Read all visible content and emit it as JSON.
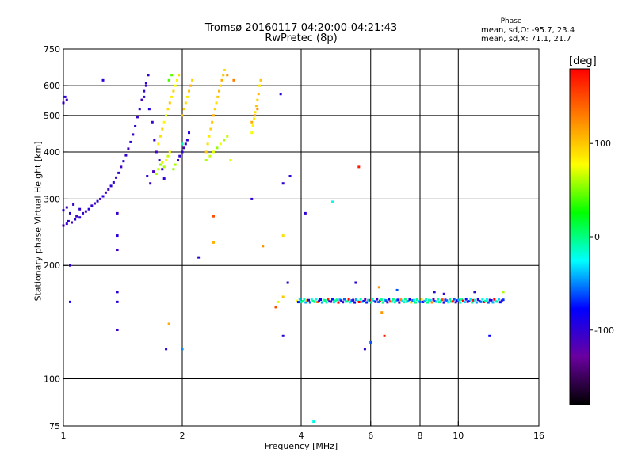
{
  "title": {
    "line1": "Tromsø 20160117 04:20:00-04:21:43",
    "line2": "RwPretec (8p)"
  },
  "phase_stats": {
    "heading": "Phase",
    "o_mode": "mean, sd,O: -95.7, 23.4",
    "x_mode": "mean, sd,X:  71.1, 21.7"
  },
  "colorbar": {
    "unit": "[deg]",
    "range": [
      -180,
      180
    ],
    "ticks": [
      {
        "value": 100,
        "label": "100"
      },
      {
        "value": 0,
        "label": "0"
      },
      {
        "value": -100,
        "label": "-100"
      }
    ],
    "colors": [
      "#000000",
      "#6a00a0",
      "#0000ff",
      "#00ffff",
      "#00ff00",
      "#ffff00",
      "#ff8000",
      "#ff0000"
    ]
  },
  "chart_data": {
    "type": "scatter",
    "xlabel": "Frequency [MHz]",
    "ylabel": "Stationary phase Virtual Height [km]",
    "x_scale": "log",
    "y_scale": "log",
    "xlim": [
      1,
      16
    ],
    "ylim": [
      75,
      750
    ],
    "x_ticks": [
      {
        "value": 1,
        "label": "1"
      },
      {
        "value": 2,
        "label": "2"
      },
      {
        "value": 4,
        "label": "4"
      },
      {
        "value": 6,
        "label": "6"
      },
      {
        "value": 8,
        "label": "8"
      },
      {
        "value": 10,
        "label": "10"
      },
      {
        "value": 16,
        "label": "16"
      }
    ],
    "y_ticks": [
      {
        "value": 75,
        "label": "75"
      },
      {
        "value": 100,
        "label": "100"
      },
      {
        "value": 200,
        "label": "200"
      },
      {
        "value": 300,
        "label": "300"
      },
      {
        "value": 400,
        "label": "400"
      },
      {
        "value": 500,
        "label": "500"
      },
      {
        "value": 600,
        "label": "600"
      },
      {
        "value": 750,
        "label": "750"
      }
    ],
    "grid_x": [
      2,
      4,
      6,
      8,
      10
    ],
    "grid_y": [
      100,
      200,
      300,
      400,
      500,
      600
    ],
    "points": [
      {
        "x": 1.0,
        "y": 255,
        "phase": -110
      },
      {
        "x": 1.02,
        "y": 258,
        "phase": -105
      },
      {
        "x": 1.03,
        "y": 262,
        "phase": -100
      },
      {
        "x": 1.05,
        "y": 260,
        "phase": -108
      },
      {
        "x": 1.07,
        "y": 265,
        "phase": -100
      },
      {
        "x": 1.08,
        "y": 270,
        "phase": -112
      },
      {
        "x": 1.1,
        "y": 268,
        "phase": -98
      },
      {
        "x": 1.12,
        "y": 275,
        "phase": -104
      },
      {
        "x": 1.14,
        "y": 278,
        "phase": -110
      },
      {
        "x": 1.16,
        "y": 282,
        "phase": -95
      },
      {
        "x": 1.18,
        "y": 288,
        "phase": -102
      },
      {
        "x": 1.2,
        "y": 292,
        "phase": -108
      },
      {
        "x": 1.22,
        "y": 296,
        "phase": -100
      },
      {
        "x": 1.24,
        "y": 300,
        "phase": -106
      },
      {
        "x": 1.26,
        "y": 305,
        "phase": -96
      },
      {
        "x": 1.28,
        "y": 312,
        "phase": -104
      },
      {
        "x": 1.3,
        "y": 318,
        "phase": -110
      },
      {
        "x": 1.32,
        "y": 325,
        "phase": -100
      },
      {
        "x": 1.34,
        "y": 332,
        "phase": -98
      },
      {
        "x": 1.36,
        "y": 342,
        "phase": -105
      },
      {
        "x": 1.38,
        "y": 352,
        "phase": -100
      },
      {
        "x": 1.4,
        "y": 365,
        "phase": -108
      },
      {
        "x": 1.42,
        "y": 378,
        "phase": -96
      },
      {
        "x": 1.44,
        "y": 392,
        "phase": -102
      },
      {
        "x": 1.46,
        "y": 408,
        "phase": -110
      },
      {
        "x": 1.48,
        "y": 425,
        "phase": -100
      },
      {
        "x": 1.5,
        "y": 445,
        "phase": -104
      },
      {
        "x": 1.52,
        "y": 468,
        "phase": -98
      },
      {
        "x": 1.54,
        "y": 495,
        "phase": -106
      },
      {
        "x": 1.56,
        "y": 520,
        "phase": -100
      },
      {
        "x": 1.58,
        "y": 550,
        "phase": -110
      },
      {
        "x": 1.6,
        "y": 580,
        "phase": -102
      },
      {
        "x": 1.62,
        "y": 610,
        "phase": -96
      },
      {
        "x": 1.64,
        "y": 640,
        "phase": -104
      },
      {
        "x": 1.0,
        "y": 280,
        "phase": -100
      },
      {
        "x": 1.02,
        "y": 285,
        "phase": -110
      },
      {
        "x": 1.04,
        "y": 275,
        "phase": -95
      },
      {
        "x": 1.06,
        "y": 290,
        "phase": -105
      },
      {
        "x": 1.1,
        "y": 282,
        "phase": -100
      },
      {
        "x": 1.0,
        "y": 540,
        "phase": -105
      },
      {
        "x": 1.01,
        "y": 560,
        "phase": -100
      },
      {
        "x": 1.02,
        "y": 550,
        "phase": -110
      },
      {
        "x": 1.26,
        "y": 620,
        "phase": -100
      },
      {
        "x": 1.04,
        "y": 200,
        "phase": -100
      },
      {
        "x": 1.04,
        "y": 160,
        "phase": -80
      },
      {
        "x": 1.37,
        "y": 275,
        "phase": -105
      },
      {
        "x": 1.37,
        "y": 240,
        "phase": -100
      },
      {
        "x": 1.37,
        "y": 220,
        "phase": -110
      },
      {
        "x": 1.37,
        "y": 170,
        "phase": -100
      },
      {
        "x": 1.37,
        "y": 160,
        "phase": -95
      },
      {
        "x": 1.37,
        "y": 135,
        "phase": -105
      },
      {
        "x": 1.6,
        "y": 560,
        "phase": -100
      },
      {
        "x": 1.62,
        "y": 600,
        "phase": -108
      },
      {
        "x": 1.65,
        "y": 520,
        "phase": -96
      },
      {
        "x": 1.68,
        "y": 480,
        "phase": -104
      },
      {
        "x": 1.7,
        "y": 430,
        "phase": -100
      },
      {
        "x": 1.72,
        "y": 400,
        "phase": -110
      },
      {
        "x": 1.75,
        "y": 380,
        "phase": -98
      },
      {
        "x": 1.78,
        "y": 360,
        "phase": -102
      },
      {
        "x": 1.8,
        "y": 340,
        "phase": -100
      },
      {
        "x": 1.66,
        "y": 330,
        "phase": -106
      },
      {
        "x": 1.63,
        "y": 345,
        "phase": -100
      },
      {
        "x": 1.69,
        "y": 355,
        "phase": -110
      },
      {
        "x": 1.72,
        "y": 350,
        "phase": 60
      },
      {
        "x": 1.74,
        "y": 360,
        "phase": 65
      },
      {
        "x": 1.76,
        "y": 370,
        "phase": 55
      },
      {
        "x": 1.78,
        "y": 375,
        "phase": 70
      },
      {
        "x": 1.8,
        "y": 365,
        "phase": 60
      },
      {
        "x": 1.82,
        "y": 380,
        "phase": 75
      },
      {
        "x": 1.84,
        "y": 390,
        "phase": 65
      },
      {
        "x": 1.86,
        "y": 400,
        "phase": 80
      },
      {
        "x": 1.74,
        "y": 420,
        "phase": 85
      },
      {
        "x": 1.76,
        "y": 440,
        "phase": 90
      },
      {
        "x": 1.78,
        "y": 460,
        "phase": 95
      },
      {
        "x": 1.8,
        "y": 480,
        "phase": 80
      },
      {
        "x": 1.82,
        "y": 500,
        "phase": 70
      },
      {
        "x": 1.84,
        "y": 520,
        "phase": 90
      },
      {
        "x": 1.86,
        "y": 540,
        "phase": 100
      },
      {
        "x": 1.88,
        "y": 560,
        "phase": 85
      },
      {
        "x": 1.9,
        "y": 580,
        "phase": 95
      },
      {
        "x": 1.92,
        "y": 600,
        "phase": 75
      },
      {
        "x": 1.94,
        "y": 620,
        "phase": 80
      },
      {
        "x": 1.96,
        "y": 640,
        "phase": 90
      },
      {
        "x": 1.85,
        "y": 620,
        "phase": 40
      },
      {
        "x": 1.88,
        "y": 640,
        "phase": 45
      },
      {
        "x": 1.9,
        "y": 360,
        "phase": 55
      },
      {
        "x": 1.92,
        "y": 370,
        "phase": 60
      },
      {
        "x": 1.95,
        "y": 380,
        "phase": -100
      },
      {
        "x": 1.97,
        "y": 390,
        "phase": -105
      },
      {
        "x": 2.0,
        "y": 400,
        "phase": -100
      },
      {
        "x": 2.02,
        "y": 410,
        "phase": -110
      },
      {
        "x": 2.04,
        "y": 420,
        "phase": -98
      },
      {
        "x": 2.06,
        "y": 430,
        "phase": -100
      },
      {
        "x": 2.08,
        "y": 450,
        "phase": -95
      },
      {
        "x": 2.0,
        "y": 500,
        "phase": 100
      },
      {
        "x": 2.02,
        "y": 520,
        "phase": 95
      },
      {
        "x": 2.04,
        "y": 540,
        "phase": 90
      },
      {
        "x": 2.06,
        "y": 560,
        "phase": 85
      },
      {
        "x": 2.08,
        "y": 580,
        "phase": 100
      },
      {
        "x": 2.1,
        "y": 600,
        "phase": 110
      },
      {
        "x": 2.12,
        "y": 620,
        "phase": 95
      },
      {
        "x": 2.3,
        "y": 400,
        "phase": 100
      },
      {
        "x": 2.32,
        "y": 420,
        "phase": 90
      },
      {
        "x": 2.34,
        "y": 440,
        "phase": 85
      },
      {
        "x": 2.36,
        "y": 460,
        "phase": 95
      },
      {
        "x": 2.38,
        "y": 480,
        "phase": 100
      },
      {
        "x": 2.4,
        "y": 500,
        "phase": 110
      },
      {
        "x": 2.42,
        "y": 520,
        "phase": 95
      },
      {
        "x": 2.44,
        "y": 540,
        "phase": 90
      },
      {
        "x": 2.46,
        "y": 560,
        "phase": 100
      },
      {
        "x": 2.48,
        "y": 580,
        "phase": 105
      },
      {
        "x": 2.5,
        "y": 600,
        "phase": 95
      },
      {
        "x": 2.52,
        "y": 620,
        "phase": 110
      },
      {
        "x": 2.54,
        "y": 640,
        "phase": 100
      },
      {
        "x": 2.56,
        "y": 660,
        "phase": 90
      },
      {
        "x": 2.3,
        "y": 380,
        "phase": 60
      },
      {
        "x": 2.35,
        "y": 390,
        "phase": 65
      },
      {
        "x": 2.4,
        "y": 400,
        "phase": 70
      },
      {
        "x": 2.45,
        "y": 410,
        "phase": 55
      },
      {
        "x": 2.5,
        "y": 420,
        "phase": 75
      },
      {
        "x": 2.55,
        "y": 430,
        "phase": 60
      },
      {
        "x": 2.6,
        "y": 440,
        "phase": 65
      },
      {
        "x": 2.65,
        "y": 380,
        "phase": 70
      },
      {
        "x": 2.6,
        "y": 640,
        "phase": 120
      },
      {
        "x": 2.7,
        "y": 620,
        "phase": 130
      },
      {
        "x": 3.0,
        "y": 450,
        "phase": 75
      },
      {
        "x": 3.02,
        "y": 470,
        "phase": 80
      },
      {
        "x": 3.04,
        "y": 490,
        "phase": 85
      },
      {
        "x": 3.06,
        "y": 510,
        "phase": 90
      },
      {
        "x": 3.08,
        "y": 530,
        "phase": 100
      },
      {
        "x": 3.1,
        "y": 550,
        "phase": 95
      },
      {
        "x": 3.12,
        "y": 570,
        "phase": 105
      },
      {
        "x": 3.14,
        "y": 600,
        "phase": 90
      },
      {
        "x": 3.16,
        "y": 620,
        "phase": 100
      },
      {
        "x": 3.0,
        "y": 480,
        "phase": 110
      },
      {
        "x": 3.05,
        "y": 500,
        "phase": 115
      },
      {
        "x": 3.1,
        "y": 520,
        "phase": 120
      },
      {
        "x": 2.0,
        "y": 420,
        "phase": -10
      },
      {
        "x": 2.2,
        "y": 210,
        "phase": -100
      },
      {
        "x": 2.4,
        "y": 270,
        "phase": 150
      },
      {
        "x": 2.4,
        "y": 230,
        "phase": 110
      },
      {
        "x": 3.0,
        "y": 300,
        "phase": -100
      },
      {
        "x": 3.2,
        "y": 225,
        "phase": 120
      },
      {
        "x": 3.6,
        "y": 240,
        "phase": 90
      },
      {
        "x": 3.6,
        "y": 330,
        "phase": -100
      },
      {
        "x": 3.75,
        "y": 345,
        "phase": -100
      },
      {
        "x": 3.55,
        "y": 570,
        "phase": -100
      },
      {
        "x": 1.82,
        "y": 120,
        "phase": -100
      },
      {
        "x": 1.85,
        "y": 140,
        "phase": 110
      },
      {
        "x": 2.0,
        "y": 120,
        "phase": -50
      },
      {
        "x": 3.45,
        "y": 155,
        "phase": 150
      },
      {
        "x": 3.5,
        "y": 160,
        "phase": 70
      },
      {
        "x": 3.6,
        "y": 165,
        "phase": 100
      },
      {
        "x": 3.7,
        "y": 180,
        "phase": -100
      },
      {
        "x": 3.6,
        "y": 130,
        "phase": -100
      },
      {
        "x": 4.1,
        "y": 275,
        "phase": -100
      },
      {
        "x": 4.8,
        "y": 295,
        "phase": -20
      },
      {
        "x": 5.6,
        "y": 365,
        "phase": 170
      },
      {
        "x": 4.3,
        "y": 77,
        "phase": -20
      },
      {
        "x": 5.8,
        "y": 120,
        "phase": -100
      },
      {
        "x": 6.0,
        "y": 125,
        "phase": -60
      },
      {
        "x": 6.5,
        "y": 130,
        "phase": 170
      },
      {
        "x": 6.4,
        "y": 150,
        "phase": 120
      },
      {
        "x": 12.0,
        "y": 130,
        "phase": -80
      },
      {
        "x": 13.0,
        "y": 170,
        "phase": 60
      },
      {
        "x": 5.5,
        "y": 180,
        "phase": -100
      },
      {
        "x": 6.3,
        "y": 175,
        "phase": 120
      },
      {
        "x": 7.0,
        "y": 172,
        "phase": -60
      },
      {
        "x": 8.7,
        "y": 170,
        "phase": -100
      },
      {
        "x": 9.2,
        "y": 168,
        "phase": -105
      },
      {
        "x": 11.0,
        "y": 170,
        "phase": -100
      }
    ],
    "band": {
      "x_start": 3.9,
      "x_end": 13.0,
      "y": 161
    }
  }
}
